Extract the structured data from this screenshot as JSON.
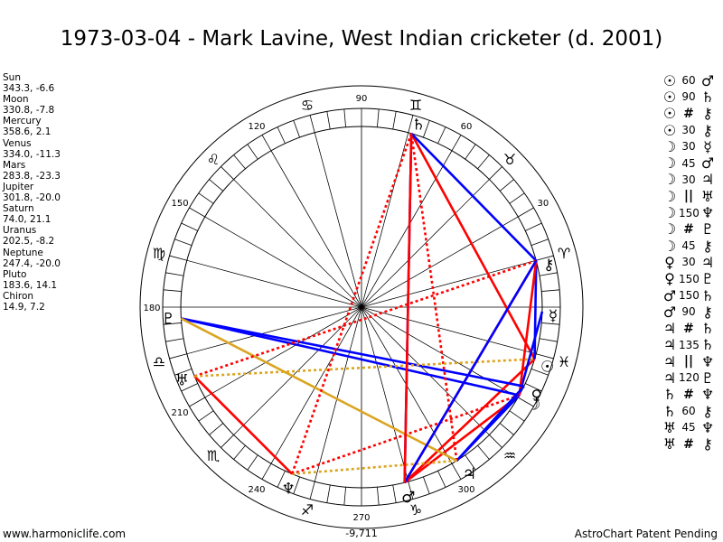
{
  "title": "1973-03-04 - Mark Lavine, West Indian cricketer (d. 2001)",
  "planets": [
    {
      "name": "Sun",
      "coords": "343.3, -6.6"
    },
    {
      "name": "Moon",
      "coords": "330.8, -7.8"
    },
    {
      "name": "Mercury",
      "coords": "358.6, 2.1"
    },
    {
      "name": "Venus",
      "coords": "334.0, -11.3"
    },
    {
      "name": "Mars",
      "coords": "283.8, -23.3"
    },
    {
      "name": "Jupiter",
      "coords": "301.8, -20.0"
    },
    {
      "name": "Saturn",
      "coords": "74.0, 21.1"
    },
    {
      "name": "Uranus",
      "coords": "202.5, -8.2"
    },
    {
      "name": "Neptune",
      "coords": "247.4, -20.0"
    },
    {
      "name": "Pluto",
      "coords": "183.6, 14.1"
    },
    {
      "name": "Chiron",
      "coords": "14.9, 7.2"
    }
  ],
  "aspects": [
    {
      "p1": "☉",
      "aspect": "60",
      "p2": "♂"
    },
    {
      "p1": "☉",
      "aspect": "90",
      "p2": "♄"
    },
    {
      "p1": "☉",
      "aspect": "#",
      "p2": "⚷"
    },
    {
      "p1": "☉",
      "aspect": "30",
      "p2": "⚷"
    },
    {
      "p1": "☽",
      "aspect": "30",
      "p2": "☿"
    },
    {
      "p1": "☽",
      "aspect": "45",
      "p2": "♂"
    },
    {
      "p1": "☽",
      "aspect": "30",
      "p2": "♃"
    },
    {
      "p1": "☽",
      "aspect": "||",
      "p2": "♅"
    },
    {
      "p1": "☽",
      "aspect": "150",
      "p2": "♆"
    },
    {
      "p1": "☽",
      "aspect": "#",
      "p2": "♇"
    },
    {
      "p1": "☽",
      "aspect": "45",
      "p2": "⚷"
    },
    {
      "p1": "♀",
      "aspect": "30",
      "p2": "♃"
    },
    {
      "p1": "♀",
      "aspect": "150",
      "p2": "♇"
    },
    {
      "p1": "♂",
      "aspect": "150",
      "p2": "♄"
    },
    {
      "p1": "♂",
      "aspect": "90",
      "p2": "⚷"
    },
    {
      "p1": "♃",
      "aspect": "#",
      "p2": "♄"
    },
    {
      "p1": "♃",
      "aspect": "135",
      "p2": "♄"
    },
    {
      "p1": "♃",
      "aspect": "||",
      "p2": "♆"
    },
    {
      "p1": "♃",
      "aspect": "120",
      "p2": "♇"
    },
    {
      "p1": "♄",
      "aspect": "#",
      "p2": "♆"
    },
    {
      "p1": "♄",
      "aspect": "60",
      "p2": "⚷"
    },
    {
      "p1": "♅",
      "aspect": "45",
      "p2": "♆"
    },
    {
      "p1": "♅",
      "aspect": "#",
      "p2": "⚷"
    }
  ],
  "wheel": {
    "degree_labels": [
      "30",
      "60",
      "90",
      "120",
      "150",
      "180",
      "210",
      "240",
      "270",
      "300"
    ],
    "sign_glyphs": [
      "♈",
      "♉",
      "♊",
      "♋",
      "♌",
      "♍",
      "♎",
      "♏",
      "♐",
      "♑",
      "♒",
      "♓"
    ],
    "bottom_value": "-9,711",
    "planet_glyphs": {
      "sun": "☉",
      "moon": "☽",
      "mercury": "☿",
      "venus": "♀",
      "mars": "♂",
      "jupiter": "♃",
      "saturn": "♄",
      "uranus": "♅",
      "neptune": "♆",
      "pluto": "♇",
      "chiron": "⚷"
    },
    "line_colors": {
      "red": "#ff0000",
      "blue": "#0000ff",
      "gold": "#daa520"
    }
  },
  "footer": {
    "left": "www.harmoniclife.com",
    "right": "AstroChart Patent Pending"
  }
}
